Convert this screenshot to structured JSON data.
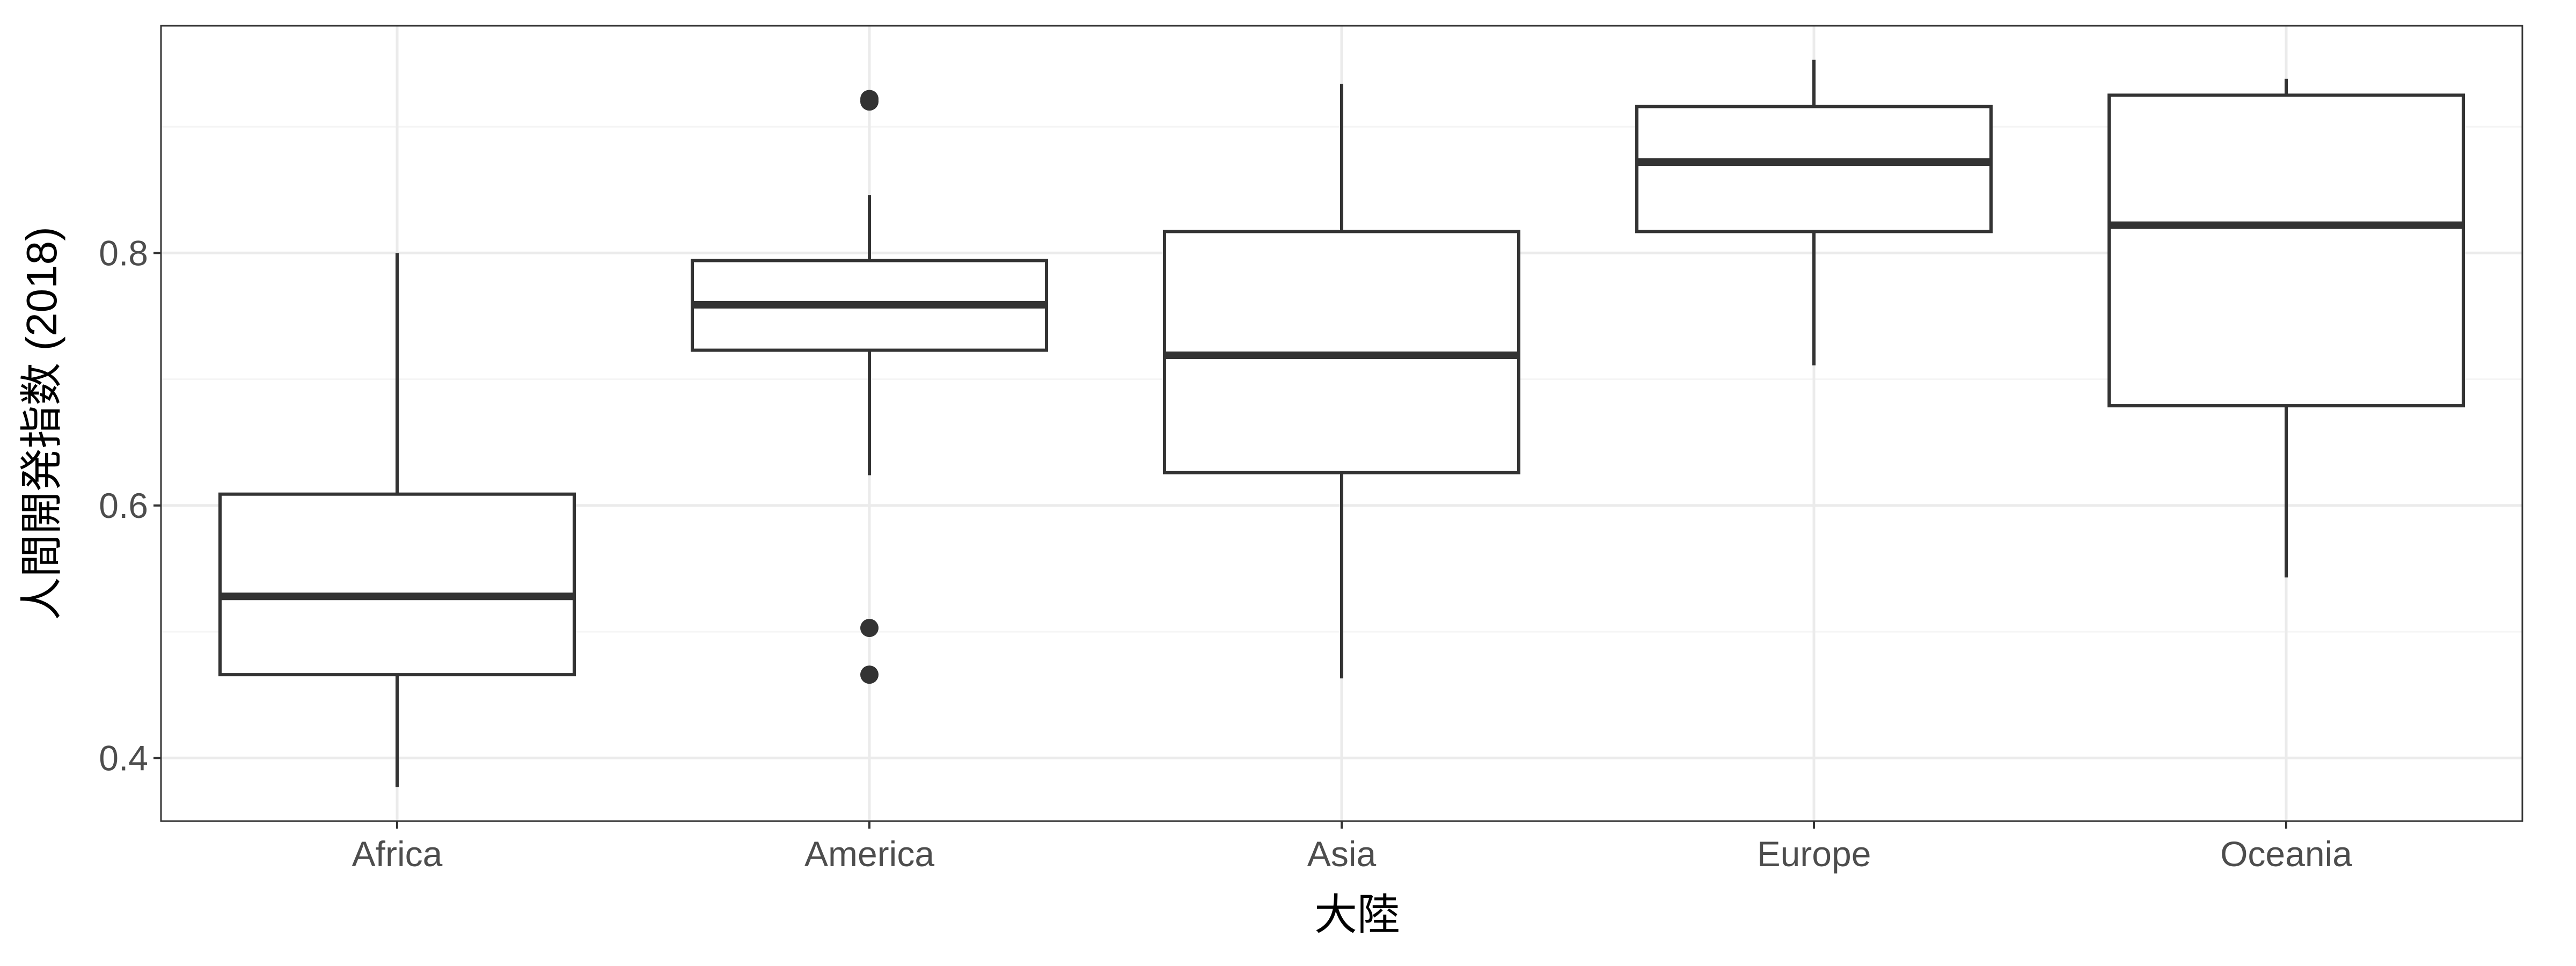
{
  "chart_data": {
    "type": "boxplot",
    "xlabel": "大陸",
    "ylabel": "人間開発指数 (2018)",
    "categories": [
      "Africa",
      "America",
      "Asia",
      "Europe",
      "Oceania"
    ],
    "boxes": [
      {
        "category": "Africa",
        "whisker_low": 0.377,
        "q1": 0.466,
        "median": 0.528,
        "q3": 0.609,
        "whisker_high": 0.8,
        "outliers": []
      },
      {
        "category": "America",
        "whisker_low": 0.624,
        "q1": 0.723,
        "median": 0.759,
        "q3": 0.794,
        "whisker_high": 0.846,
        "outliers": [
          0.922,
          0.92,
          0.503,
          0.466
        ]
      },
      {
        "category": "Asia",
        "whisker_low": 0.463,
        "q1": 0.626,
        "median": 0.719,
        "q3": 0.817,
        "whisker_high": 0.934,
        "outliers": []
      },
      {
        "category": "Europe",
        "whisker_low": 0.711,
        "q1": 0.817,
        "median": 0.872,
        "q3": 0.916,
        "whisker_high": 0.953,
        "outliers": []
      },
      {
        "category": "Oceania",
        "whisker_low": 0.543,
        "q1": 0.679,
        "median": 0.822,
        "q3": 0.925,
        "whisker_high": 0.938,
        "outliers": []
      }
    ],
    "yticks": [
      0.4,
      0.6,
      0.8
    ],
    "ytick_labels": [
      "0.4",
      "0.6",
      "0.8"
    ],
    "ylim": [
      0.35,
      0.98
    ],
    "grid": true,
    "legend": "none",
    "colors": {
      "box_line": "#333333",
      "panel_border": "#333333",
      "grid_major": "#ebebeb",
      "grid_minor": "#f5f5f5",
      "tick_text": "#4d4d4d",
      "title_text": "#000000"
    }
  }
}
